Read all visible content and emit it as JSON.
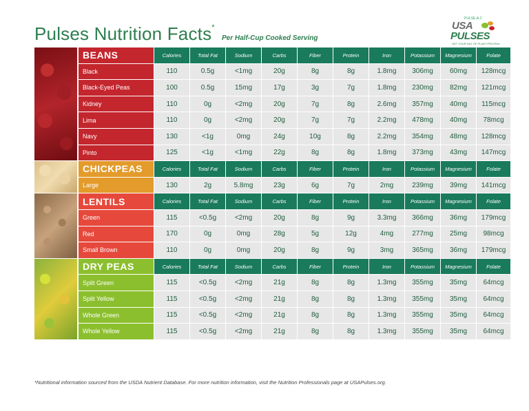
{
  "title": {
    "main": "Pulses Nutrition Facts",
    "mark": "*",
    "subtitle": "Per Half-Cup Cooked Serving"
  },
  "logo": {
    "small": "PULSE.A.C",
    "usa": "USA",
    "pulses": "PULSES",
    "tagline": "GET YOUR DAY OF PLANT PROTEIN"
  },
  "headers": [
    "Calories",
    "Total Fat",
    "Sodium",
    "Carbs",
    "Fiber",
    "Protein",
    "Iron",
    "Potassium",
    "Magnesium",
    "Folate"
  ],
  "colors": {
    "header": "#1a7a5c",
    "beans": "#c4262e",
    "chickpeas": "#e39b2b",
    "lentils": "#e6493c",
    "peas": "#8cbf2e",
    "cell": "#e7e7e7"
  },
  "groups": [
    {
      "name": "BEANS",
      "color": "#c4262e",
      "rows": [
        {
          "name": "Black",
          "values": [
            "110",
            "0.5g",
            "<1mg",
            "20g",
            "8g",
            "8g",
            "1.8mg",
            "306mg",
            "60mg",
            "128mcg"
          ]
        },
        {
          "name": "Black-Eyed Peas",
          "values": [
            "100",
            "0.5g",
            "15mg",
            "17g",
            "3g",
            "7g",
            "1.8mg",
            "230mg",
            "82mg",
            "121mcg"
          ]
        },
        {
          "name": "Kidney",
          "values": [
            "110",
            "0g",
            "<2mg",
            "20g",
            "7g",
            "8g",
            "2.6mg",
            "357mg",
            "40mg",
            "115mcg"
          ]
        },
        {
          "name": "Lima",
          "values": [
            "110",
            "0g",
            "<2mg",
            "20g",
            "7g",
            "7g",
            "2.2mg",
            "478mg",
            "40mg",
            "78mcg"
          ]
        },
        {
          "name": "Navy",
          "values": [
            "130",
            "<1g",
            "0mg",
            "24g",
            "10g",
            "8g",
            "2.2mg",
            "354mg",
            "48mg",
            "128mcg"
          ]
        },
        {
          "name": "Pinto",
          "values": [
            "125",
            "<1g",
            "<1mg",
            "22g",
            "8g",
            "8g",
            "1.8mg",
            "373mg",
            "43mg",
            "147mcg"
          ]
        }
      ]
    },
    {
      "name": "CHICKPEAS",
      "color": "#e39b2b",
      "rows": [
        {
          "name": "Large",
          "values": [
            "130",
            "2g",
            "5.8mg",
            "23g",
            "6g",
            "7g",
            "2mg",
            "239mg",
            "39mg",
            "141mcg"
          ]
        }
      ]
    },
    {
      "name": "LENTILS",
      "color": "#e6493c",
      "rows": [
        {
          "name": "Green",
          "values": [
            "115",
            "<0.5g",
            "<2mg",
            "20g",
            "8g",
            "9g",
            "3.3mg",
            "366mg",
            "36mg",
            "179mcg"
          ]
        },
        {
          "name": "Red",
          "values": [
            "170",
            "0g",
            "0mg",
            "28g",
            "5g",
            "12g",
            "4mg",
            "277mg",
            "25mg",
            "98mcg"
          ]
        },
        {
          "name": "Small Brown",
          "values": [
            "110",
            "0g",
            "0mg",
            "20g",
            "8g",
            "9g",
            "3mg",
            "365mg",
            "36mg",
            "179mcg"
          ]
        }
      ]
    },
    {
      "name": "DRY PEAS",
      "color": "#8cbf2e",
      "rows": [
        {
          "name": "Split Green",
          "values": [
            "115",
            "<0.5g",
            "<2mg",
            "21g",
            "8g",
            "8g",
            "1.3mg",
            "355mg",
            "35mg",
            "64mcg"
          ]
        },
        {
          "name": "Split Yellow",
          "values": [
            "115",
            "<0.5g",
            "<2mg",
            "21g",
            "8g",
            "8g",
            "1.3mg",
            "355mg",
            "35mg",
            "64mcg"
          ]
        },
        {
          "name": "Whole Green",
          "values": [
            "115",
            "<0.5g",
            "<2mg",
            "21g",
            "8g",
            "8g",
            "1.3mg",
            "355mg",
            "35mg",
            "64mcg"
          ]
        },
        {
          "name": "Whole Yellow",
          "values": [
            "115",
            "<0.5g",
            "<2mg",
            "21g",
            "8g",
            "8g",
            "1.3mg",
            "355mg",
            "35mg",
            "64mcg"
          ]
        }
      ]
    }
  ],
  "footnote": "*Nutritional information sourced from the USDA Nutrient Database. For more nutrition information, visit the Nutrition Professionals page at USAPulses.org."
}
